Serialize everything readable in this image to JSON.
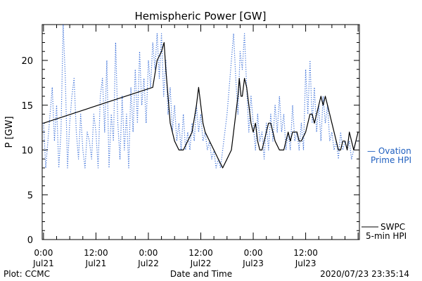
{
  "chart_data": {
    "type": "line",
    "title": "Hemispheric Power [GW]",
    "xlabel": "Date and Time",
    "ylabel": "P [GW]",
    "ylim": [
      0,
      24
    ],
    "xlim_hours": [
      -0.3,
      72.3
    ],
    "y_ticks": [
      0,
      5,
      10,
      15,
      20
    ],
    "x_ticks": [
      {
        "h": 0,
        "time": "0:00",
        "date": "Jul21"
      },
      {
        "h": 12,
        "time": "12:00",
        "date": "Jul21"
      },
      {
        "h": 24,
        "time": "0:00",
        "date": "Jul22"
      },
      {
        "h": 36,
        "time": "12:00",
        "date": "Jul22"
      },
      {
        "h": 48,
        "time": "0:00",
        "date": "Jul23"
      },
      {
        "h": 60,
        "time": "12:00",
        "date": "Jul23"
      }
    ],
    "series": [
      {
        "name": "SWPC 5-min HPI",
        "color": "#000000",
        "style": "solid",
        "points": [
          [
            0,
            13
          ],
          [
            25,
            17
          ],
          [
            26,
            20
          ],
          [
            27,
            21
          ],
          [
            27.6,
            22
          ],
          [
            28,
            19
          ],
          [
            28.5,
            16
          ],
          [
            29,
            13
          ],
          [
            29.5,
            12
          ],
          [
            30,
            11
          ],
          [
            31,
            10
          ],
          [
            32,
            10
          ],
          [
            33,
            11
          ],
          [
            34,
            12
          ],
          [
            35,
            15
          ],
          [
            35.5,
            17
          ],
          [
            36,
            15
          ],
          [
            36.5,
            13
          ],
          [
            37,
            12
          ],
          [
            38,
            11
          ],
          [
            39,
            10
          ],
          [
            40,
            9
          ],
          [
            41,
            8
          ],
          [
            42,
            9
          ],
          [
            43,
            10
          ],
          [
            43.5,
            12
          ],
          [
            44,
            14
          ],
          [
            44.5,
            16
          ],
          [
            44.8,
            18
          ],
          [
            45.2,
            16
          ],
          [
            45.5,
            16
          ],
          [
            46,
            18
          ],
          [
            46.5,
            17
          ],
          [
            47,
            15
          ],
          [
            47.5,
            13
          ],
          [
            48,
            12
          ],
          [
            48.5,
            13
          ],
          [
            49,
            11
          ],
          [
            49.5,
            10
          ],
          [
            50,
            10
          ],
          [
            50.5,
            11
          ],
          [
            51,
            12
          ],
          [
            51.5,
            13
          ],
          [
            52,
            13
          ],
          [
            52.5,
            12
          ],
          [
            53,
            11
          ],
          [
            54,
            10
          ],
          [
            55,
            10
          ],
          [
            55.5,
            11
          ],
          [
            56,
            12
          ],
          [
            56.5,
            11
          ],
          [
            57,
            12
          ],
          [
            58,
            12
          ],
          [
            58.5,
            11
          ],
          [
            59,
            11
          ],
          [
            60,
            12
          ],
          [
            60.5,
            13
          ],
          [
            61,
            14
          ],
          [
            61.5,
            14
          ],
          [
            62,
            13
          ],
          [
            62.5,
            14
          ],
          [
            63,
            15
          ],
          [
            63.5,
            16
          ],
          [
            64,
            15
          ],
          [
            64.5,
            16
          ],
          [
            65,
            15
          ],
          [
            65.5,
            14
          ],
          [
            66,
            13
          ],
          [
            66.5,
            12
          ],
          [
            67,
            11
          ],
          [
            67.5,
            10
          ],
          [
            68,
            10
          ],
          [
            68.5,
            11
          ],
          [
            69,
            11
          ],
          [
            69.5,
            10
          ],
          [
            70,
            12
          ],
          [
            70.5,
            11
          ],
          [
            71,
            10
          ],
          [
            71.5,
            11
          ],
          [
            72,
            12
          ]
        ]
      },
      {
        "name": "Ovation Prime HPI",
        "color": "#3a6fd8",
        "style": "dotted",
        "points": [
          [
            0,
            13
          ],
          [
            0.5,
            8
          ],
          [
            1,
            11
          ],
          [
            1.5,
            14
          ],
          [
            2,
            17
          ],
          [
            2.5,
            11
          ],
          [
            3,
            15
          ],
          [
            3.5,
            8
          ],
          [
            4,
            12
          ],
          [
            4.5,
            24
          ],
          [
            5,
            18
          ],
          [
            5.5,
            8
          ],
          [
            6,
            13
          ],
          [
            6.5,
            16
          ],
          [
            7,
            18
          ],
          [
            7.5,
            12
          ],
          [
            8,
            9
          ],
          [
            8.5,
            14
          ],
          [
            9,
            10
          ],
          [
            9.5,
            8
          ],
          [
            10,
            12
          ],
          [
            10.5,
            11
          ],
          [
            11,
            9
          ],
          [
            11.5,
            14
          ],
          [
            12,
            12
          ],
          [
            12.5,
            8
          ],
          [
            13,
            16
          ],
          [
            13.5,
            18
          ],
          [
            14,
            12
          ],
          [
            14.5,
            20
          ],
          [
            15,
            8
          ],
          [
            15.5,
            14
          ],
          [
            16,
            11
          ],
          [
            16.5,
            22
          ],
          [
            17,
            13
          ],
          [
            17.5,
            9
          ],
          [
            18,
            16
          ],
          [
            18.5,
            10
          ],
          [
            19,
            14
          ],
          [
            19.5,
            8
          ],
          [
            20,
            17
          ],
          [
            20.5,
            12
          ],
          [
            21,
            19
          ],
          [
            21.5,
            13
          ],
          [
            22,
            21
          ],
          [
            22.5,
            15
          ],
          [
            23,
            18
          ],
          [
            23.5,
            13
          ],
          [
            24,
            20
          ],
          [
            24.5,
            17
          ],
          [
            25,
            22
          ],
          [
            25.5,
            19
          ],
          [
            26,
            23
          ],
          [
            26.5,
            18
          ],
          [
            27,
            23
          ],
          [
            27.5,
            16
          ],
          [
            28,
            20
          ],
          [
            28.5,
            14
          ],
          [
            29,
            17
          ],
          [
            29.5,
            12
          ],
          [
            30,
            15
          ],
          [
            30.5,
            11
          ],
          [
            31,
            13
          ],
          [
            31.5,
            10
          ],
          [
            32,
            14
          ],
          [
            32.5,
            10
          ],
          [
            33,
            12
          ],
          [
            33.5,
            10
          ],
          [
            34,
            13
          ],
          [
            34.5,
            11
          ],
          [
            35,
            15
          ],
          [
            35.5,
            12
          ],
          [
            36,
            14
          ],
          [
            36.5,
            11
          ],
          [
            37,
            12
          ],
          [
            37.5,
            10
          ],
          [
            38,
            11
          ],
          [
            38.5,
            9
          ],
          [
            39,
            10
          ],
          [
            39.5,
            8
          ],
          [
            40,
            9
          ],
          [
            40.5,
            8
          ],
          [
            41,
            10
          ],
          [
            41.5,
            12
          ],
          [
            42,
            14
          ],
          [
            42.5,
            17
          ],
          [
            43,
            20
          ],
          [
            43.5,
            23
          ],
          [
            44,
            18
          ],
          [
            44.5,
            14
          ],
          [
            45,
            21
          ],
          [
            45.5,
            19
          ],
          [
            46,
            23
          ],
          [
            46.5,
            17
          ],
          [
            47,
            12
          ],
          [
            47.5,
            16
          ],
          [
            48,
            13
          ],
          [
            48.5,
            10
          ],
          [
            49,
            14
          ],
          [
            49.5,
            11
          ],
          [
            50,
            12
          ],
          [
            50.5,
            9
          ],
          [
            51,
            13
          ],
          [
            51.5,
            10
          ],
          [
            52,
            14
          ],
          [
            52.5,
            11
          ],
          [
            53,
            15
          ],
          [
            53.5,
            12
          ],
          [
            54,
            16
          ],
          [
            54.5,
            12
          ],
          [
            55,
            14
          ],
          [
            55.5,
            10
          ],
          [
            56,
            12
          ],
          [
            56.5,
            10
          ],
          [
            57,
            15
          ],
          [
            57.5,
            11
          ],
          [
            58,
            12
          ],
          [
            58.5,
            10
          ],
          [
            59,
            13
          ],
          [
            59.5,
            10
          ],
          [
            60,
            19
          ],
          [
            60.5,
            14
          ],
          [
            61,
            20
          ],
          [
            61.5,
            13
          ],
          [
            62,
            17
          ],
          [
            62.5,
            12
          ],
          [
            63,
            15
          ],
          [
            63.5,
            11
          ],
          [
            64,
            16
          ],
          [
            64.5,
            13
          ],
          [
            65,
            15
          ],
          [
            65.5,
            11
          ],
          [
            66,
            12
          ],
          [
            66.5,
            10
          ],
          [
            67,
            11
          ],
          [
            67.5,
            9
          ],
          [
            68,
            12
          ],
          [
            68.5,
            10
          ],
          [
            69,
            11
          ],
          [
            69.5,
            10
          ],
          [
            70,
            11
          ],
          [
            70.5,
            9
          ],
          [
            71,
            10
          ],
          [
            71.5,
            11
          ],
          [
            72,
            11
          ]
        ]
      }
    ],
    "legend": {
      "ovation_line1": "— Ovation",
      "ovation_line2": "Prime HPI",
      "swpc_line1": "SWPC",
      "swpc_line2": "5-min HPI"
    }
  },
  "footer": {
    "left": "Plot: CCMC",
    "right": "2020/07/23 23:35:14"
  }
}
